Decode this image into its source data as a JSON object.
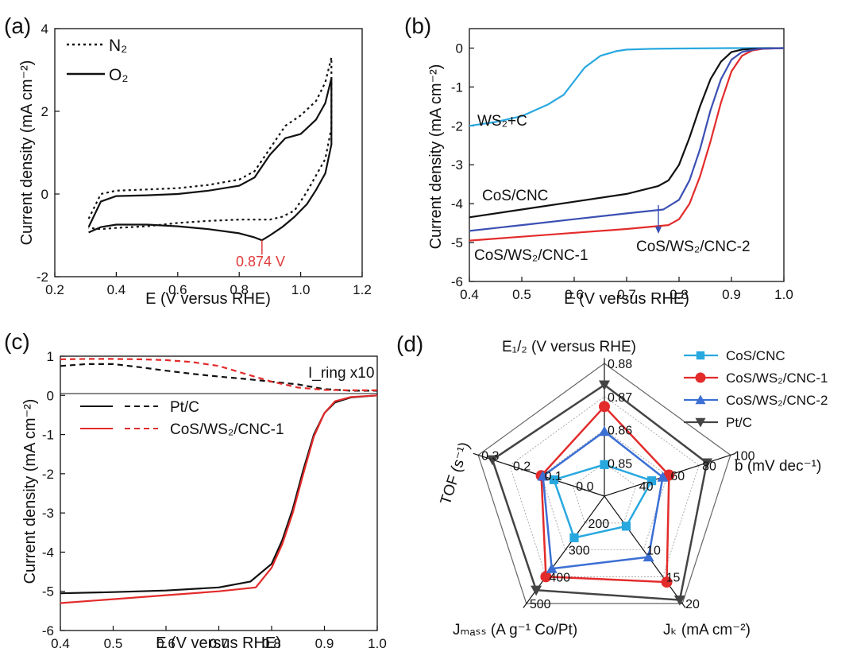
{
  "chart_data": [
    {
      "panel_label": "(a)",
      "type": "line",
      "xlabel": "E (V versus RHE)",
      "ylabel": "Current density (mA cm⁻²)",
      "xlim": [
        0.2,
        1.2
      ],
      "ylim": [
        -2,
        4
      ],
      "xticks": [
        "0.2",
        "0.4",
        "0.6",
        "0.8",
        "1.0",
        "1.2"
      ],
      "yticks": [
        "-2",
        "0",
        "2",
        "4"
      ],
      "legend": [
        "N₂",
        "O₂"
      ],
      "legend_position": "top-left",
      "annotation": "0.874 V",
      "annotation_x": 0.874,
      "series": [
        {
          "name": "N₂",
          "style": "dotted",
          "x": [
            0.31,
            0.35,
            0.4,
            0.5,
            0.6,
            0.7,
            0.8,
            0.85,
            0.9,
            0.95,
            1.0,
            1.05,
            1.08,
            1.1,
            1.1,
            1.08,
            1.05,
            1.02,
            0.98,
            0.94,
            0.9,
            0.85,
            0.8,
            0.7,
            0.6,
            0.5,
            0.4,
            0.35,
            0.31
          ],
          "y": [
            -0.6,
            0.0,
            0.08,
            0.11,
            0.14,
            0.22,
            0.35,
            0.55,
            1.1,
            1.65,
            1.9,
            2.25,
            2.7,
            3.3,
            1.6,
            0.85,
            0.45,
            0.05,
            -0.4,
            -0.55,
            -0.62,
            -0.62,
            -0.62,
            -0.65,
            -0.7,
            -0.78,
            -0.82,
            -0.85,
            -0.82
          ]
        },
        {
          "name": "O₂",
          "style": "solid",
          "x": [
            0.31,
            0.35,
            0.4,
            0.5,
            0.6,
            0.7,
            0.8,
            0.85,
            0.9,
            0.95,
            1.0,
            1.05,
            1.08,
            1.1,
            1.1,
            1.08,
            1.05,
            1.02,
            0.98,
            0.94,
            0.9,
            0.874,
            0.85,
            0.8,
            0.7,
            0.6,
            0.5,
            0.4,
            0.35,
            0.31
          ],
          "y": [
            -0.8,
            -0.18,
            -0.05,
            -0.03,
            0.0,
            0.08,
            0.2,
            0.4,
            0.95,
            1.35,
            1.45,
            1.8,
            2.2,
            2.8,
            1.2,
            0.5,
            0.1,
            -0.25,
            -0.55,
            -0.8,
            -1.0,
            -1.12,
            -1.05,
            -0.95,
            -0.85,
            -0.78,
            -0.74,
            -0.74,
            -0.8,
            -0.93
          ]
        }
      ]
    },
    {
      "panel_label": "(b)",
      "type": "line",
      "xlabel": "E (V versus RHE)",
      "ylabel": "Current density (mA cm⁻²)",
      "xlim": [
        0.4,
        1.0
      ],
      "ylim": [
        -6,
        0.5
      ],
      "xticks": [
        "0.4",
        "0.5",
        "0.6",
        "0.7",
        "0.8",
        "0.9",
        "1.0"
      ],
      "yticks": [
        "-6",
        "-5",
        "-4",
        "-3",
        "-2",
        "-1",
        "0"
      ],
      "series": [
        {
          "name": "WS₂+C",
          "color": "#29a8e0",
          "x": [
            0.4,
            0.45,
            0.5,
            0.55,
            0.58,
            0.6,
            0.62,
            0.65,
            0.68,
            0.7,
            0.75,
            0.8,
            0.9,
            1.0
          ],
          "y": [
            -2.0,
            -1.9,
            -1.75,
            -1.45,
            -1.2,
            -0.85,
            -0.5,
            -0.2,
            -0.08,
            -0.04,
            -0.02,
            -0.01,
            0.0,
            0.0
          ]
        },
        {
          "name": "CoS/CNC",
          "color": "#111111",
          "x": [
            0.4,
            0.5,
            0.6,
            0.7,
            0.76,
            0.78,
            0.8,
            0.82,
            0.84,
            0.86,
            0.88,
            0.9,
            0.92,
            0.95,
            1.0
          ],
          "y": [
            -4.35,
            -4.15,
            -3.95,
            -3.75,
            -3.55,
            -3.4,
            -3.0,
            -2.3,
            -1.5,
            -0.8,
            -0.35,
            -0.1,
            -0.04,
            -0.01,
            0.0
          ]
        },
        {
          "name": "CoS/WS₂/CNC-1",
          "color": "#e32b2b",
          "x": [
            0.4,
            0.5,
            0.6,
            0.7,
            0.78,
            0.8,
            0.82,
            0.84,
            0.86,
            0.88,
            0.9,
            0.92,
            0.94,
            0.96,
            1.0
          ],
          "y": [
            -4.95,
            -4.85,
            -4.75,
            -4.65,
            -4.55,
            -4.4,
            -4.0,
            -3.3,
            -2.4,
            -1.4,
            -0.6,
            -0.2,
            -0.06,
            -0.02,
            0.0
          ]
        },
        {
          "name": "CoS/WS₂/CNC-2",
          "color": "#3b4fb3",
          "x": [
            0.4,
            0.5,
            0.6,
            0.7,
            0.77,
            0.8,
            0.82,
            0.84,
            0.86,
            0.88,
            0.9,
            0.92,
            0.95,
            1.0
          ],
          "y": [
            -4.7,
            -4.55,
            -4.4,
            -4.25,
            -4.15,
            -3.9,
            -3.4,
            -2.6,
            -1.6,
            -0.8,
            -0.3,
            -0.1,
            -0.02,
            0.0
          ]
        }
      ],
      "annotations": [
        "WS₂+C",
        "CoS/CNC",
        "CoS/WS₂/CNC-1",
        "CoS/WS₂/CNC-2"
      ]
    },
    {
      "panel_label": "(c)",
      "type": "line",
      "xlabel": "E (V versus RHE)",
      "ylabel": "Current density (mA cm⁻²)",
      "xlim": [
        0.4,
        1.0
      ],
      "ylim": [
        -6,
        1
      ],
      "xticks": [
        "0.4",
        "0.5",
        "0.6",
        "0.7",
        "0.8",
        "0.9",
        "1.0"
      ],
      "yticks": [
        "-6",
        "-5",
        "-4",
        "-3",
        "-2",
        "-1",
        "0",
        "1"
      ],
      "annotation": "I_ring x10",
      "legend": [
        "Pt/C",
        "CoS/WS₂/CNC-1"
      ],
      "series": [
        {
          "name": "Pt/C",
          "color": "#111111",
          "style": "solid",
          "x": [
            0.4,
            0.5,
            0.6,
            0.7,
            0.76,
            0.8,
            0.82,
            0.84,
            0.86,
            0.88,
            0.9,
            0.92,
            0.95,
            1.0
          ],
          "y": [
            -5.05,
            -5.02,
            -4.98,
            -4.9,
            -4.75,
            -4.3,
            -3.7,
            -2.9,
            -1.9,
            -1.0,
            -0.45,
            -0.18,
            -0.05,
            0.0
          ]
        },
        {
          "name": "CoS/WS₂/CNC-1",
          "color": "#e32b2b",
          "style": "solid",
          "x": [
            0.4,
            0.5,
            0.6,
            0.7,
            0.77,
            0.8,
            0.82,
            0.84,
            0.86,
            0.88,
            0.9,
            0.92,
            0.95,
            1.0
          ],
          "y": [
            -5.3,
            -5.2,
            -5.1,
            -5.0,
            -4.9,
            -4.4,
            -3.8,
            -3.0,
            -2.0,
            -1.05,
            -0.45,
            -0.15,
            -0.04,
            0.0
          ]
        },
        {
          "name": "Pt/C ring",
          "color": "#111111",
          "style": "dashed",
          "x": [
            0.4,
            0.45,
            0.5,
            0.55,
            0.6,
            0.65,
            0.7,
            0.75,
            0.8,
            0.85,
            0.9,
            0.95,
            1.0
          ],
          "y": [
            0.75,
            0.8,
            0.8,
            0.72,
            0.63,
            0.55,
            0.48,
            0.42,
            0.35,
            0.28,
            0.16,
            0.12,
            0.12
          ]
        },
        {
          "name": "CoS/WS₂/CNC-1 ring",
          "color": "#e32b2b",
          "style": "dashed",
          "x": [
            0.4,
            0.45,
            0.5,
            0.55,
            0.6,
            0.65,
            0.7,
            0.75,
            0.8,
            0.85,
            0.9,
            0.95,
            1.0
          ],
          "y": [
            0.92,
            0.93,
            0.93,
            0.92,
            0.9,
            0.85,
            0.75,
            0.55,
            0.35,
            0.2,
            0.14,
            0.13,
            0.13
          ]
        }
      ]
    },
    {
      "panel_label": "(d)",
      "type": "radar",
      "axes": [
        {
          "name": "E₁/₂ (V versus RHE)",
          "ticks": [
            "0.85",
            "0.86",
            "0.87",
            "0.88"
          ],
          "range": [
            0.84,
            0.88
          ]
        },
        {
          "name": "b (mV dec⁻¹)",
          "ticks": [
            "40",
            "60",
            "80",
            "100"
          ],
          "range": [
            20,
            100
          ]
        },
        {
          "name": "Jₖ (mA cm⁻²)",
          "ticks": [
            "10",
            "15",
            "20"
          ],
          "range": [
            5,
            20
          ]
        },
        {
          "name": "Jₘₐₛₛ (A g⁻¹ Co/Pt)",
          "ticks": [
            "200",
            "300",
            "400",
            "500"
          ],
          "range": [
            100,
            500
          ]
        },
        {
          "name": "TOF (s⁻¹)",
          "ticks": [
            "0.0",
            "0.1",
            "0.2",
            "0.3"
          ],
          "range": [
            -0.1,
            0.3
          ]
        }
      ],
      "series": [
        {
          "name": "CoS/CNC",
          "color": "#29a8e0",
          "marker": "square",
          "values": [
            0.8495,
            50,
            9.2,
            255,
            0.06
          ]
        },
        {
          "name": "CoS/WS₂/CNC-1",
          "color": "#e32b2b",
          "marker": "circle",
          "values": [
            0.867,
            61,
            17,
            400,
            0.1
          ]
        },
        {
          "name": "CoS/WS₂/CNC-2",
          "color": "#3b6fd4",
          "marker": "triangle-up",
          "values": [
            0.8595,
            57,
            13.5,
            370,
            0.095
          ]
        },
        {
          "name": "Pt/C",
          "color": "#444444",
          "marker": "triangle-down",
          "values": [
            0.8735,
            85,
            19.5,
            450,
            0.255
          ]
        }
      ]
    }
  ]
}
